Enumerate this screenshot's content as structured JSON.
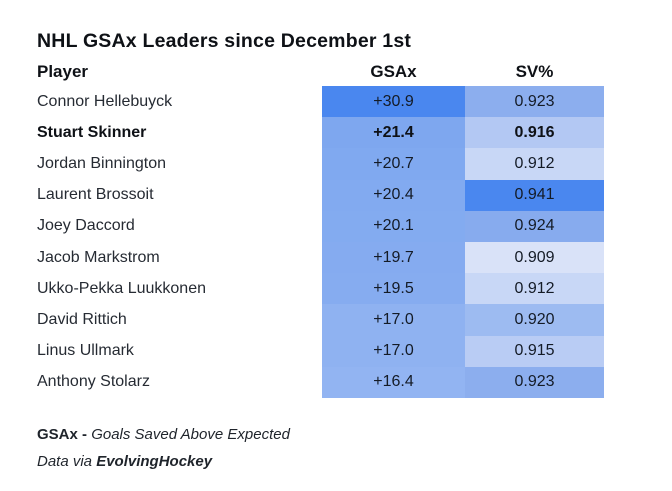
{
  "title": "NHL GSAx Leaders since December 1st",
  "chart_data": {
    "type": "table",
    "title": "NHL GSAx Leaders since December 1st",
    "columns": [
      "Player",
      "GSAx",
      "SV%"
    ],
    "rows": [
      [
        "Connor Hellebuyck",
        30.9,
        0.923
      ],
      [
        "Stuart Skinner",
        21.4,
        0.916
      ],
      [
        "Jordan Binnington",
        20.7,
        0.912
      ],
      [
        "Laurent Brossoit",
        20.4,
        0.941
      ],
      [
        "Joey Daccord",
        20.1,
        0.924
      ],
      [
        "Jacob Markstrom",
        19.7,
        0.909
      ],
      [
        "Ukko-Pekka Luukkonen",
        19.5,
        0.912
      ],
      [
        "David Rittich",
        17.0,
        0.92
      ],
      [
        "Linus Ullmark",
        17.0,
        0.915
      ],
      [
        "Anthony Stolarz",
        16.4,
        0.923
      ]
    ],
    "notes": "Cell backgrounds are a blue heatmap scaled to value; darker = better"
  },
  "table": {
    "headers": {
      "player": "Player",
      "gsax": "GSAx",
      "sv": "SV%"
    },
    "rows": [
      {
        "player": "Connor Hellebuyck",
        "gsax": "+30.9",
        "sv": "0.923",
        "gsax_bg": "#4a87ef",
        "sv_bg": "#8caeee",
        "emphasis": false
      },
      {
        "player": "Stuart Skinner",
        "gsax": "+21.4",
        "sv": "0.916",
        "gsax_bg": "#7ea7ef",
        "sv_bg": "#b3c8f3",
        "emphasis": true
      },
      {
        "player": "Jordan Binnington",
        "gsax": "+20.7",
        "sv": "0.912",
        "gsax_bg": "#80a9f0",
        "sv_bg": "#c8d7f6",
        "emphasis": false
      },
      {
        "player": "Laurent Brossoit",
        "gsax": "+20.4",
        "sv": "0.941",
        "gsax_bg": "#82aaf0",
        "sv_bg": "#4a87ef",
        "emphasis": false
      },
      {
        "player": "Joey Daccord",
        "gsax": "+20.1",
        "sv": "0.924",
        "gsax_bg": "#83abf0",
        "sv_bg": "#87abee",
        "emphasis": false
      },
      {
        "player": "Jacob Markstrom",
        "gsax": "+19.7",
        "sv": "0.909",
        "gsax_bg": "#85abf0",
        "sv_bg": "#d9e2f8",
        "emphasis": false
      },
      {
        "player": "Ukko-Pekka Luukkonen",
        "gsax": "+19.5",
        "sv": "0.912",
        "gsax_bg": "#86acf0",
        "sv_bg": "#c8d7f6",
        "emphasis": false
      },
      {
        "player": "David Rittich",
        "gsax": "+17.0",
        "sv": "0.920",
        "gsax_bg": "#8fb2f1",
        "sv_bg": "#9dbbf1",
        "emphasis": false
      },
      {
        "player": "Linus Ullmark",
        "gsax": "+17.0",
        "sv": "0.915",
        "gsax_bg": "#8fb2f1",
        "sv_bg": "#b9ccf4",
        "emphasis": false
      },
      {
        "player": "Anthony Stolarz",
        "gsax": "+16.4",
        "sv": "0.923",
        "gsax_bg": "#92b4f2",
        "sv_bg": "#8caeee",
        "emphasis": false
      }
    ]
  },
  "footer": {
    "term": "GSAx -",
    "definition": "Goals Saved Above Expected",
    "credit_prefix": "Data via ",
    "credit_source": "EvolvingHockey"
  },
  "colors": {
    "heatmap_dark": "#4a87ef",
    "heatmap_light": "#d9e2f8",
    "text_primary": "#0e1116",
    "background": "#ffffff"
  }
}
